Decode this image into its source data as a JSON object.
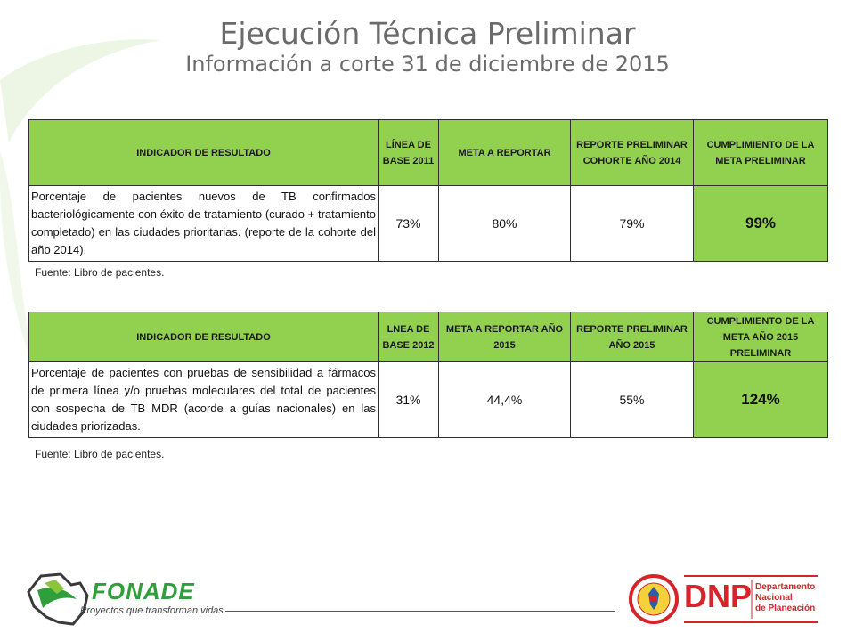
{
  "slide": {
    "title": "Ejecución Técnica Preliminar",
    "subtitle": "Información a corte 31 de diciembre de 2015"
  },
  "table1": {
    "headers": {
      "indicator": "INDICADOR DE RESULTADO",
      "baseline": "LÍNEA DE BASE 2011",
      "target": "META A REPORTAR",
      "report": "REPORTE PRELIMINAR COHORTE AÑO 2014",
      "compliance": "CUMPLIMIENTO DE LA META PRELIMINAR"
    },
    "row": {
      "indicator": "Porcentaje de pacientes nuevos de TB confirmados bacteriológicamente con éxito de tratamiento (curado + tratamiento completado) en las ciudades prioritarias. (reporte de la cohorte del año 2014).",
      "baseline": "73%",
      "target": "80%",
      "report": "79%",
      "compliance": "99%"
    },
    "source": "Fuente: Libro de pacientes."
  },
  "table2": {
    "headers": {
      "indicator": "INDICADOR DE RESULTADO",
      "baseline": "LNEA DE BASE 2012",
      "target": "META A REPORTAR AÑO 2015",
      "report": "REPORTE PRELIMINAR AÑO 2015",
      "compliance": "CUMPLIMIENTO DE LA META AÑO 2015 PRELIMINAR"
    },
    "row": {
      "indicator": "Porcentaje de pacientes con pruebas de sensibilidad a fármacos de primera línea y/o pruebas moleculares del total de pacientes con sospecha de TB MDR (acorde a guías nacionales) en las ciudades priorizadas.",
      "baseline": "31%",
      "target": "44,4%",
      "report": "55%",
      "compliance": "124%"
    },
    "source": "Fuente: Libro de pacientes."
  },
  "footer": {
    "fonade_name": "FONADE",
    "fonade_tagline": "Proyectos que transforman vidas",
    "dnp_name": "DNP",
    "dnp_department": [
      "Departamento",
      "Nacional",
      "de Planeación"
    ]
  },
  "colors": {
    "header_green": "#92d050",
    "title_gray": "#6b6b6b",
    "dnp_red": "#d7232a",
    "fonade_green": "#2e9f3a"
  }
}
